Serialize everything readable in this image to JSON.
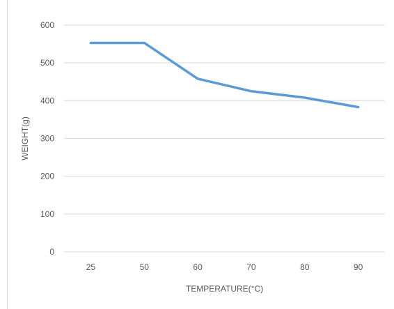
{
  "chart_data": {
    "type": "line",
    "title": "",
    "xlabel": "TEMPERATURE(°C)",
    "ylabel": "WEIGHT(g)",
    "categories": [
      "25",
      "50",
      "60",
      "70",
      "80",
      "90"
    ],
    "series": [
      {
        "values": [
          553,
          553,
          458,
          425,
          408,
          383
        ],
        "color": "#5b9bd5"
      }
    ],
    "ylim": [
      0,
      600
    ],
    "yticks": [
      0,
      100,
      200,
      300,
      400,
      500,
      600
    ],
    "grid": true,
    "gridColor": "#d9d9d9",
    "legend": "none"
  }
}
